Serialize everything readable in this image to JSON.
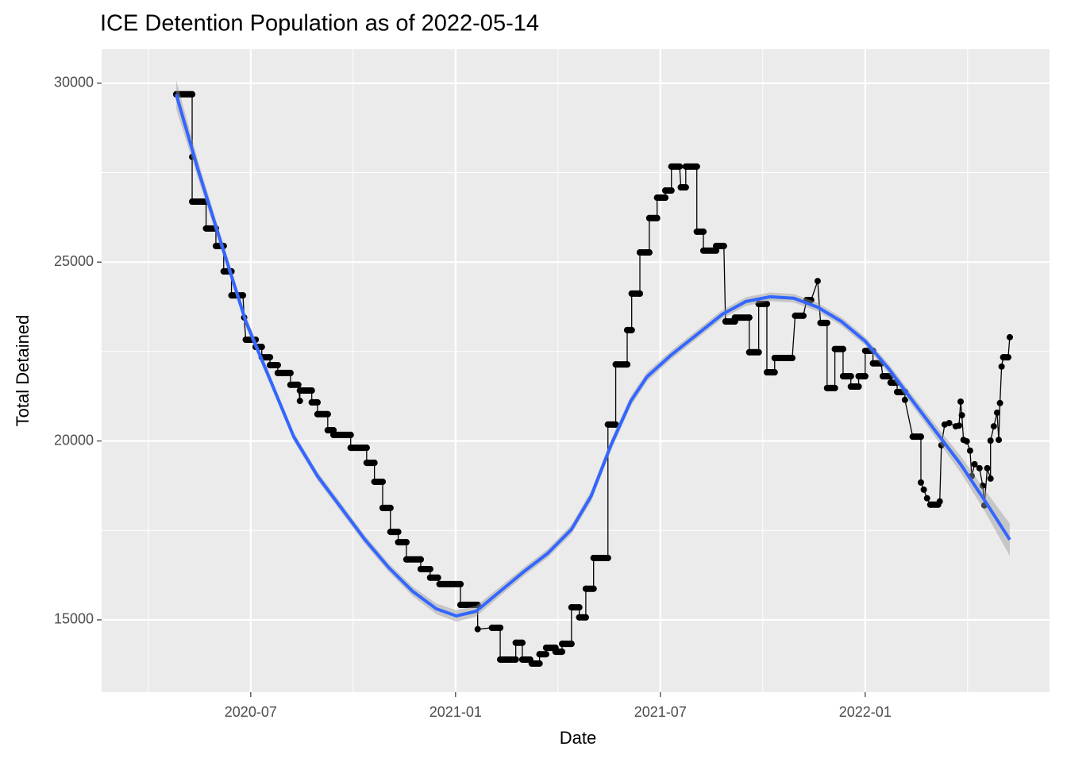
{
  "chart_data": {
    "type": "line",
    "title": "ICE Detention Population as of 2022-05-14",
    "x_label": "Date",
    "y_label": "Total Detained",
    "xlim": [
      2020.136,
      2022.45
    ],
    "ylim": [
      12980,
      30950
    ],
    "xticks": [
      {
        "value": 2020.5,
        "label": "2020-07"
      },
      {
        "value": 2021.0,
        "label": "2021-01"
      },
      {
        "value": 2021.5,
        "label": "2021-07"
      },
      {
        "value": 2022.0,
        "label": "2022-01"
      }
    ],
    "yticks": [
      15000,
      20000,
      25000,
      30000
    ],
    "grid": true,
    "series": [
      {
        "color": "#000000",
        "points": true,
        "x": [
          2020.318,
          2020.357,
          2020.357,
          2020.357,
          2020.391,
          2020.391,
          2020.415,
          2020.415,
          2020.434,
          2020.434,
          2020.453,
          2020.453,
          2020.481,
          2020.484,
          2020.488,
          2020.512,
          2020.512,
          2020.527,
          2020.527,
          2020.547,
          2020.547,
          2020.566,
          2020.566,
          2020.597,
          2020.597,
          2020.616,
          2020.62,
          2020.62,
          2020.649,
          2020.649,
          2020.663,
          2020.663,
          2020.688,
          2020.688,
          2020.702,
          2020.702,
          2020.744,
          2020.744,
          2020.783,
          2020.783,
          2020.802,
          2020.802,
          2020.822,
          2020.822,
          2020.841,
          2020.841,
          2020.86,
          2020.86,
          2020.88,
          2020.88,
          2020.915,
          2020.915,
          2020.938,
          2020.938,
          2020.957,
          2020.961,
          2021.012,
          2021.012,
          2021.054,
          2021.054,
          2021.089,
          2021.109,
          2021.109,
          2021.147,
          2021.147,
          2021.163,
          2021.163,
          2021.182,
          2021.186,
          2021.205,
          2021.205,
          2021.221,
          2021.221,
          2021.244,
          2021.244,
          2021.26,
          2021.26,
          2021.283,
          2021.283,
          2021.302,
          2021.302,
          2021.318,
          2021.318,
          2021.337,
          2021.337,
          2021.372,
          2021.372,
          2021.391,
          2021.391,
          2021.419,
          2021.419,
          2021.43,
          2021.43,
          2021.45,
          2021.45,
          2021.473,
          2021.473,
          2021.492,
          2021.492,
          2021.512,
          2021.512,
          2021.527,
          2021.527,
          2021.547,
          2021.55,
          2021.562,
          2021.562,
          2021.589,
          2021.589,
          2021.605,
          2021.605,
          2021.636,
          2021.636,
          2021.655,
          2021.659,
          2021.682,
          2021.682,
          2021.717,
          2021.717,
          2021.74,
          2021.74,
          2021.76,
          2021.76,
          2021.779,
          2021.779,
          2021.822,
          2021.829,
          2021.849,
          2021.857,
          2021.868,
          2021.884,
          2021.891,
          2021.907,
          2021.907,
          2021.926,
          2021.926,
          2021.946,
          2021.946,
          2021.965,
          2021.965,
          2021.984,
          2021.984,
          2022.0,
          2022.0,
          2022.019,
          2022.019,
          2022.039,
          2022.043,
          2022.062,
          2022.062,
          2022.078,
          2022.078,
          2022.097,
          2022.097,
          2022.116,
          2022.136,
          2022.136,
          2022.143,
          2022.151,
          2022.159,
          2022.178,
          2022.182,
          2022.186,
          2022.194,
          2022.205,
          2022.221,
          2022.229,
          2022.233,
          2022.236,
          2022.24,
          2022.248,
          2022.256,
          2022.26,
          2022.267,
          2022.279,
          2022.287,
          2022.291,
          2022.298,
          2022.306,
          2022.306,
          2022.314,
          2022.322,
          2022.326,
          2022.329,
          2022.333,
          2022.337,
          2022.349,
          2022.353
        ],
        "values": [
          29690,
          29690,
          27940,
          26690,
          26690,
          25940,
          25940,
          25450,
          25450,
          24740,
          24740,
          24070,
          24070,
          23450,
          22830,
          22830,
          22630,
          22630,
          22340,
          22340,
          22120,
          22120,
          21900,
          21900,
          21570,
          21570,
          21120,
          21410,
          21410,
          21080,
          21080,
          20750,
          20750,
          20300,
          20300,
          20170,
          20170,
          19810,
          19810,
          19390,
          19390,
          18860,
          18860,
          18130,
          18130,
          17460,
          17460,
          17170,
          17170,
          16690,
          16690,
          16420,
          16420,
          16180,
          16180,
          16000,
          16000,
          15420,
          15420,
          14740,
          14780,
          14780,
          13890,
          13890,
          14360,
          14360,
          13890,
          13890,
          13780,
          13780,
          14040,
          14040,
          14220,
          14220,
          14110,
          14110,
          14330,
          14330,
          15350,
          15350,
          15070,
          15070,
          15870,
          15870,
          16730,
          16730,
          20460,
          20460,
          22140,
          22140,
          23100,
          23100,
          24120,
          24120,
          25270,
          25270,
          26230,
          26230,
          26800,
          26800,
          27000,
          27000,
          27670,
          27670,
          27090,
          27090,
          27670,
          27670,
          25850,
          25850,
          25320,
          25320,
          25450,
          25450,
          23340,
          23340,
          23450,
          23450,
          22480,
          22480,
          23830,
          23830,
          21920,
          21920,
          22320,
          22320,
          23500,
          23500,
          23940,
          23940,
          24470,
          23300,
          23300,
          21480,
          21480,
          22570,
          22570,
          21810,
          21810,
          21520,
          21520,
          21810,
          21810,
          22520,
          22520,
          22170,
          22170,
          21810,
          21810,
          21630,
          21630,
          21370,
          21370,
          21150,
          20120,
          20120,
          18840,
          18640,
          18400,
          18220,
          18220,
          18310,
          19880,
          20460,
          20500,
          20410,
          20430,
          21100,
          20720,
          20030,
          19990,
          19730,
          19020,
          19350,
          19240,
          18750,
          18200,
          19240,
          18950,
          20010,
          20410,
          20790,
          20030,
          21060,
          22080,
          22340,
          22340,
          22900
        ]
      },
      {
        "color": "#3366FF",
        "band_color": "#999999",
        "x": [
          2020.318,
          2020.372,
          2020.43,
          2020.488,
          2020.547,
          2020.605,
          2020.663,
          2020.721,
          2020.779,
          2020.837,
          2020.895,
          2020.953,
          2021.002,
          2021.05,
          2021.109,
          2021.167,
          2021.225,
          2021.283,
          2021.331,
          2021.38,
          2021.428,
          2021.467,
          2021.525,
          2021.593,
          2021.651,
          2021.709,
          2021.767,
          2021.826,
          2021.884,
          2021.942,
          2022.0,
          2022.058,
          2022.116,
          2022.174,
          2022.233,
          2022.291,
          2022.353
        ],
        "values": [
          29690,
          27560,
          25450,
          23340,
          21720,
          20120,
          19020,
          18130,
          17240,
          16460,
          15800,
          15310,
          15110,
          15240,
          15800,
          16350,
          16860,
          17530,
          18460,
          19900,
          21120,
          21790,
          22390,
          23010,
          23540,
          23900,
          24030,
          23990,
          23740,
          23340,
          22790,
          22010,
          21120,
          20240,
          19350,
          18350,
          17240
        ],
        "lower": [
          29290,
          27310,
          25270,
          23190,
          21590,
          20000,
          18900,
          18010,
          17120,
          16340,
          15670,
          15160,
          14950,
          15090,
          15670,
          16230,
          16740,
          17400,
          18310,
          19750,
          20980,
          21660,
          22270,
          22890,
          23420,
          23780,
          23910,
          23870,
          23620,
          23220,
          22670,
          21880,
          20970,
          20060,
          19120,
          18050,
          16790
        ],
        "upper": [
          30090,
          27810,
          25630,
          23490,
          21850,
          20240,
          19140,
          18250,
          17360,
          16580,
          15930,
          15460,
          15270,
          15390,
          15930,
          16470,
          16980,
          17660,
          18610,
          20050,
          21260,
          21920,
          22510,
          23130,
          23660,
          24020,
          24150,
          24110,
          23860,
          23460,
          22910,
          22140,
          21270,
          20420,
          19580,
          18650,
          17690
        ]
      }
    ]
  }
}
